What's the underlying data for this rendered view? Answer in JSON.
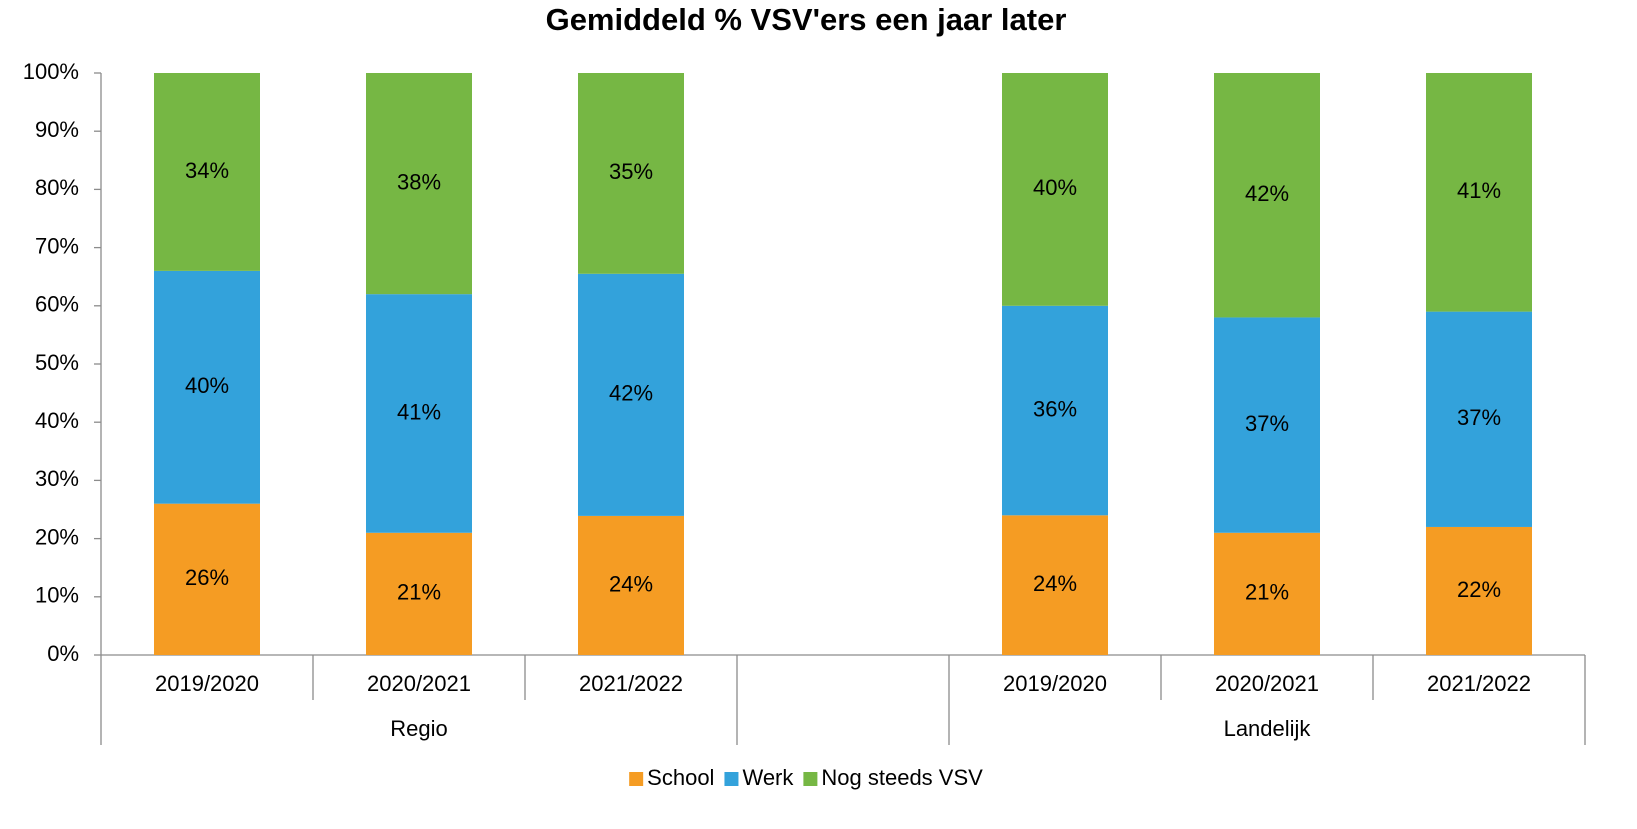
{
  "chart_data": {
    "type": "stacked_bar",
    "title": "Gemiddeld % VSV'ers een jaar later",
    "categories": [
      "2019/2020",
      "2020/2021",
      "2021/2022",
      null,
      "2019/2020",
      "2020/2021",
      "2021/2022"
    ],
    "groups": [
      {
        "name": "Regio",
        "size": 3
      },
      {
        "name": null,
        "size": 1
      },
      {
        "name": "Landelijk",
        "size": 3
      }
    ],
    "series": [
      {
        "name": "School",
        "color": "#f59c23",
        "values": [
          26,
          21,
          23.9,
          null,
          24,
          21,
          22
        ],
        "value_labels": [
          "26%",
          "21%",
          "24%",
          null,
          "24%",
          "21%",
          "22%"
        ]
      },
      {
        "name": "Werk",
        "color": "#33a2db",
        "values": [
          40,
          41,
          41.6,
          null,
          36,
          37,
          37
        ],
        "value_labels": [
          "40%",
          "41%",
          "42%",
          null,
          "36%",
          "37%",
          "37%"
        ]
      },
      {
        "name": "Nog steeds VSV",
        "color": "#76b744",
        "values": [
          34,
          38,
          34.5,
          null,
          40,
          42,
          41
        ],
        "value_labels": [
          "34%",
          "38%",
          "35%",
          null,
          "40%",
          "42%",
          "41%"
        ]
      }
    ],
    "ylim": [
      0,
      100
    ],
    "yticks": [
      {
        "value": 0,
        "label": "0%"
      },
      {
        "value": 10,
        "label": "10%"
      },
      {
        "value": 20,
        "label": "20%"
      },
      {
        "value": 30,
        "label": "30%"
      },
      {
        "value": 40,
        "label": "40%"
      },
      {
        "value": 50,
        "label": "50%"
      },
      {
        "value": 60,
        "label": "60%"
      },
      {
        "value": 70,
        "label": "70%"
      },
      {
        "value": 80,
        "label": "80%"
      },
      {
        "value": 90,
        "label": "90%"
      },
      {
        "value": 100,
        "label": "100%"
      }
    ],
    "grid": false,
    "legend": "bottom"
  }
}
